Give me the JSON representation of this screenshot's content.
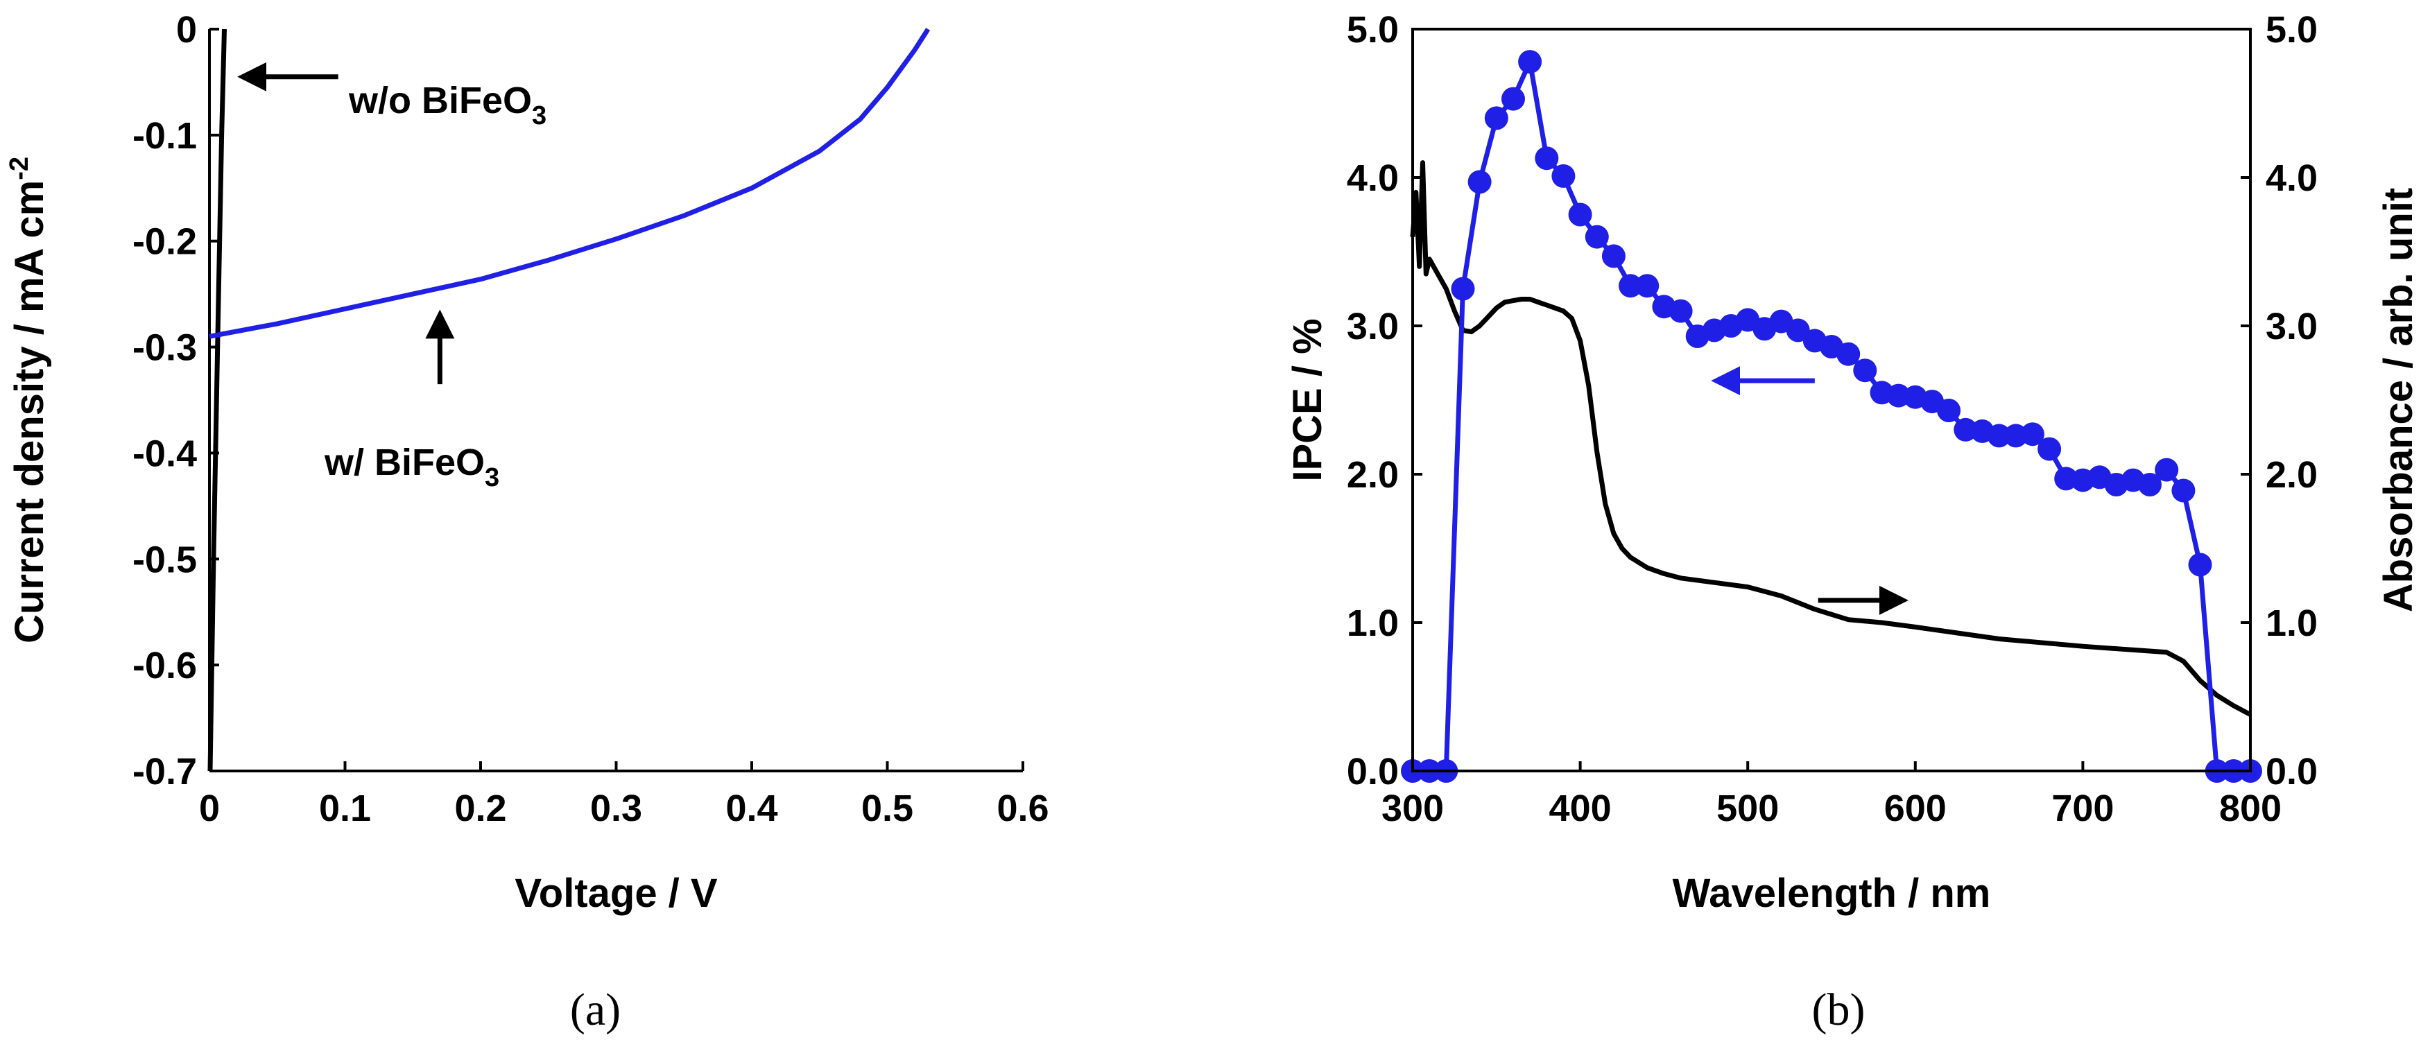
{
  "chart_data": [
    {
      "panel": "(a)",
      "type": "line",
      "xlabel": "Voltage / V",
      "ylabel": "Current density / mA cm",
      "ylabel_sup": "-2",
      "xlim": [
        0,
        0.6
      ],
      "ylim": [
        -0.7,
        0
      ],
      "xticks": [
        0,
        0.1,
        0.2,
        0.3,
        0.4,
        0.5,
        0.6
      ],
      "xtick_labels": [
        "0",
        "0.1",
        "0.2",
        "0.3",
        "0.4",
        "0.5",
        "0.6"
      ],
      "yticks": [
        0,
        -0.1,
        -0.2,
        -0.3,
        -0.4,
        -0.5,
        -0.6,
        -0.7
      ],
      "ytick_labels": [
        "0",
        "-0.1",
        "-0.2",
        "-0.3",
        "-0.4",
        "-0.5",
        "-0.6",
        "-0.7"
      ],
      "colors": {
        "with": "#1f1fe6",
        "without": "#000000"
      },
      "series": [
        {
          "name": "w/o BiFeO3",
          "x": [
            0.0005,
            0.003,
            0.006,
            0.009,
            0.011
          ],
          "y": [
            -0.7,
            -0.5,
            -0.3,
            -0.1,
            0
          ]
        },
        {
          "name": "w/ BiFeO3",
          "x": [
            0,
            0.05,
            0.1,
            0.15,
            0.2,
            0.25,
            0.3,
            0.35,
            0.4,
            0.45,
            0.48,
            0.5,
            0.52,
            0.53
          ],
          "y": [
            -0.29,
            -0.278,
            -0.264,
            -0.25,
            -0.236,
            -0.218,
            -0.198,
            -0.176,
            -0.15,
            -0.115,
            -0.085,
            -0.055,
            -0.02,
            0
          ]
        }
      ],
      "annotations": [
        {
          "text": "w/o BiFeO",
          "sub": "3",
          "arrow_from": [
            0.095,
            -0.045
          ],
          "arrow_to": [
            0.018,
            -0.045
          ]
        },
        {
          "text": "w/ BiFeO",
          "sub": "3",
          "arrow_from": [
            0.17,
            -0.335
          ],
          "arrow_to": [
            0.17,
            -0.26
          ]
        }
      ]
    },
    {
      "panel": "(b)",
      "type": "line",
      "xlabel": "Wavelength / nm",
      "ylabel_left": "IPCE / %",
      "ylabel_right": "Absorbance / arb. unit",
      "xlim": [
        300,
        800
      ],
      "ylim": [
        0,
        5
      ],
      "xticks": [
        300,
        400,
        500,
        600,
        700,
        800
      ],
      "xtick_labels": [
        "300",
        "400",
        "500",
        "600",
        "700",
        "800"
      ],
      "yticks": [
        0,
        1,
        2,
        3,
        4,
        5
      ],
      "ytick_labels": [
        "0.0",
        "1.0",
        "2.0",
        "3.0",
        "4.0",
        "5.0"
      ],
      "colors": {
        "ipce": "#1f1fe6",
        "absorbance": "#000000"
      },
      "series": [
        {
          "name": "IPCE",
          "x": [
            300,
            310,
            320,
            330,
            340,
            350,
            360,
            370,
            380,
            390,
            400,
            410,
            420,
            430,
            440,
            450,
            460,
            470,
            480,
            490,
            500,
            510,
            520,
            530,
            540,
            550,
            560,
            570,
            580,
            590,
            600,
            610,
            620,
            630,
            640,
            650,
            660,
            670,
            680,
            690,
            700,
            710,
            720,
            730,
            740,
            750,
            760,
            770,
            780,
            790,
            800
          ],
          "y": [
            0,
            0,
            0,
            3.25,
            3.97,
            4.4,
            4.53,
            4.78,
            4.13,
            4.01,
            3.75,
            3.6,
            3.47,
            3.27,
            3.27,
            3.13,
            3.1,
            2.93,
            2.97,
            3.0,
            3.04,
            2.98,
            3.03,
            2.97,
            2.9,
            2.86,
            2.81,
            2.7,
            2.55,
            2.53,
            2.52,
            2.49,
            2.43,
            2.3,
            2.29,
            2.26,
            2.26,
            2.27,
            2.17,
            1.97,
            1.96,
            1.98,
            1.93,
            1.96,
            1.93,
            2.03,
            1.89,
            1.39,
            0,
            0,
            0
          ]
        },
        {
          "name": "Absorbance",
          "x": [
            300,
            302,
            304,
            306,
            308,
            310,
            315,
            320,
            325,
            330,
            335,
            340,
            345,
            350,
            355,
            360,
            365,
            370,
            375,
            380,
            385,
            390,
            395,
            400,
            405,
            410,
            415,
            420,
            425,
            430,
            440,
            450,
            460,
            480,
            500,
            520,
            540,
            560,
            580,
            600,
            650,
            700,
            750,
            760,
            770,
            780,
            790,
            800
          ],
          "y": [
            3.6,
            3.9,
            3.4,
            4.1,
            3.35,
            3.45,
            3.35,
            3.25,
            3.1,
            2.97,
            2.96,
            3.0,
            3.06,
            3.12,
            3.16,
            3.17,
            3.18,
            3.18,
            3.16,
            3.14,
            3.12,
            3.1,
            3.05,
            2.9,
            2.6,
            2.15,
            1.8,
            1.6,
            1.5,
            1.44,
            1.37,
            1.33,
            1.3,
            1.27,
            1.24,
            1.18,
            1.09,
            1.02,
            1.0,
            0.97,
            0.89,
            0.84,
            0.8,
            0.74,
            0.61,
            0.51,
            0.44,
            0.38
          ]
        }
      ],
      "arrows": [
        {
          "axis": "left",
          "from": [
            540,
            2.63
          ],
          "to": [
            476,
            2.63
          ],
          "color": "#1f1fe6"
        },
        {
          "axis": "right",
          "from": [
            542,
            1.15
          ],
          "to": [
            598,
            1.15
          ],
          "color": "#000000"
        }
      ]
    }
  ]
}
